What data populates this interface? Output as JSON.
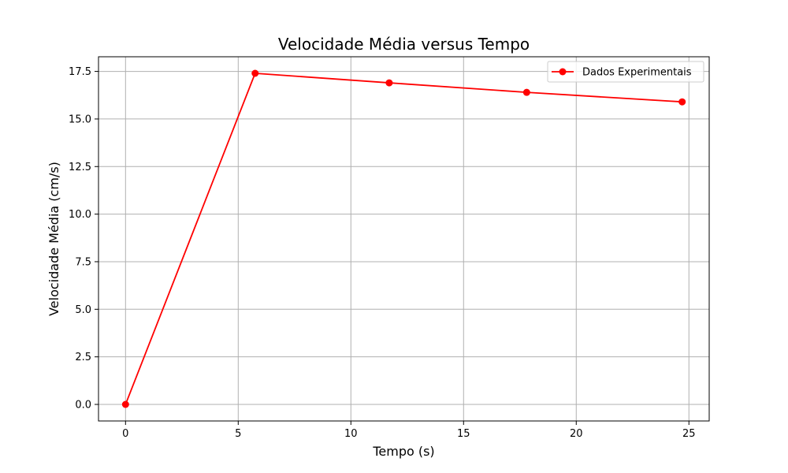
{
  "chart_data": {
    "type": "line",
    "title": "Velocidade Média versus Tempo",
    "xlabel": "Tempo (s)",
    "ylabel": "Velocidade Média (cm/s)",
    "xlim": [
      -1.2,
      25.9
    ],
    "ylim": [
      -0.87,
      18.27
    ],
    "xticks": [
      0,
      5,
      10,
      15,
      20,
      25
    ],
    "xtick_labels": [
      "0",
      "5",
      "10",
      "15",
      "20",
      "25"
    ],
    "yticks": [
      0,
      2.5,
      5,
      7.5,
      10,
      12.5,
      15,
      17.5
    ],
    "ytick_labels": [
      "0.0",
      "2.5",
      "5.0",
      "7.5",
      "10.0",
      "12.5",
      "15.0",
      "17.5"
    ],
    "grid": true,
    "legend_position": "top-right",
    "series": [
      {
        "name": "Dados Experimentais",
        "color": "#ff0000",
        "marker": "circle",
        "x": [
          0,
          5.75,
          11.7,
          17.8,
          24.7
        ],
        "y": [
          0,
          17.4,
          16.9,
          16.4,
          15.9
        ]
      }
    ]
  }
}
